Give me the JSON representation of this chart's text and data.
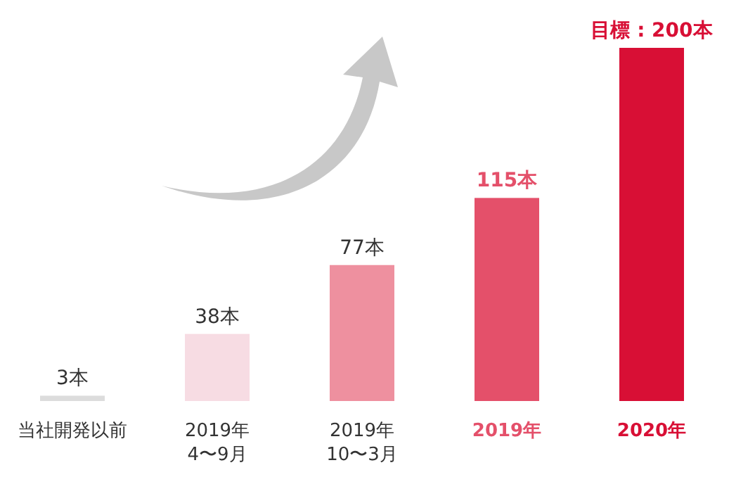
{
  "chart_data": {
    "type": "bar",
    "categories": [
      "当社開発以前",
      "2019年\n4〜9月",
      "2019年\n10〜3月",
      "2019年",
      "2020年"
    ],
    "values": [
      3,
      38,
      77,
      115,
      200
    ],
    "colors": [
      "#dcdcdc",
      "#f7dce3",
      "#ee909f",
      "#e4506a",
      "#d80f35"
    ],
    "value_labels": [
      "3本",
      "38本",
      "77本",
      "115本",
      "目標 : 200本"
    ]
  }
}
